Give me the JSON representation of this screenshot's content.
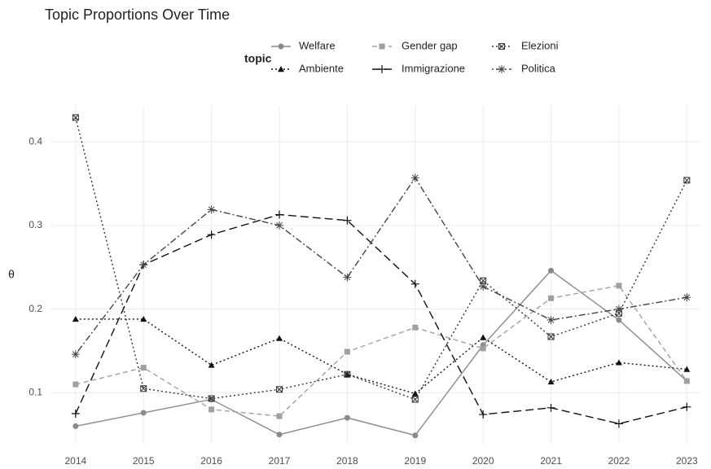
{
  "chart_data": {
    "type": "line",
    "title": "Topic Proportions Over Time",
    "y_label": "θ",
    "legend_title": "topic",
    "x": [
      2014,
      2015,
      2016,
      2017,
      2018,
      2019,
      2020,
      2021,
      2022,
      2023
    ],
    "xlim": [
      2013.63,
      2023.2
    ],
    "xticks": [
      2014,
      2015,
      2016,
      2017,
      2018,
      2019,
      2020,
      2021,
      2022,
      2023
    ],
    "ylim": [
      0.039,
      0.443
    ],
    "yticks": [
      0.1,
      0.2,
      0.3,
      0.4
    ],
    "grid": true,
    "series": [
      {
        "name": "Welfare",
        "color": "#8a8a8a",
        "linetype": "solid",
        "shape": "circle",
        "values": [
          0.06,
          0.076,
          0.092,
          0.05,
          0.07,
          0.049,
          0.157,
          0.246,
          0.187,
          0.114
        ]
      },
      {
        "name": "Ambiente",
        "color": "#111111",
        "linetype": "dotted",
        "shape": "triangle",
        "values": [
          0.188,
          0.188,
          0.133,
          0.165,
          0.122,
          0.099,
          0.166,
          0.113,
          0.136,
          0.128
        ]
      },
      {
        "name": "Gender gap",
        "color": "#a0a0a0",
        "linetype": "dashed",
        "shape": "square",
        "values": [
          0.11,
          0.13,
          0.08,
          0.072,
          0.149,
          0.178,
          0.153,
          0.213,
          0.228,
          0.114
        ]
      },
      {
        "name": "Immigrazione",
        "color": "#111111",
        "linetype": "longdash",
        "shape": "plus",
        "values": [
          0.075,
          0.253,
          0.289,
          0.313,
          0.306,
          0.23,
          0.074,
          0.082,
          0.063,
          0.083
        ]
      },
      {
        "name": "Elezioni",
        "color": "#333333",
        "linetype": "dotted",
        "shape": "squarex",
        "values": [
          0.429,
          0.105,
          0.093,
          0.104,
          0.122,
          0.092,
          0.234,
          0.167,
          0.195,
          0.354
        ]
      },
      {
        "name": "Politica",
        "color": "#444444",
        "linetype": "dotdash",
        "shape": "asterisk",
        "values": [
          0.146,
          0.253,
          0.319,
          0.3,
          0.238,
          0.357,
          0.227,
          0.187,
          0.2,
          0.214
        ]
      }
    ]
  }
}
